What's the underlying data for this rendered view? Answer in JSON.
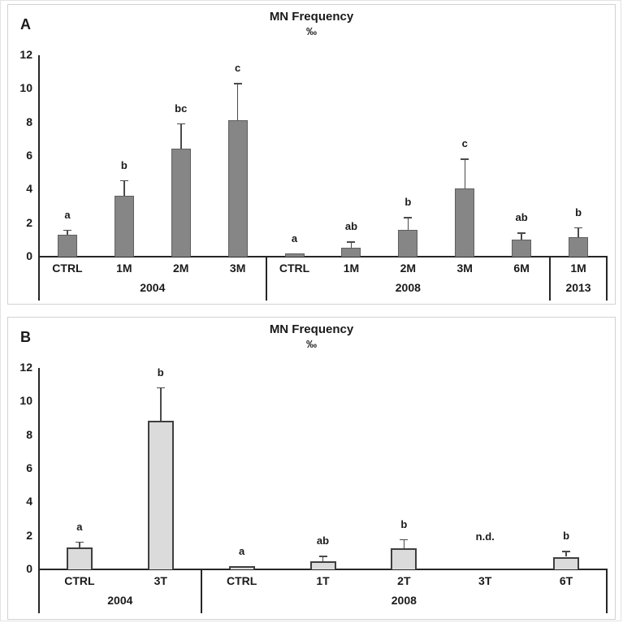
{
  "chart_data": [
    {
      "type": "bar",
      "panel": "A",
      "title": "MN Frequency",
      "subtitle": "‰",
      "ylabel": "",
      "xlabel": "",
      "ylim": [
        0,
        12
      ],
      "yticks": [
        0,
        2,
        4,
        6,
        8,
        10,
        12
      ],
      "grid": false,
      "legend": "none",
      "bar_fill": "#868686",
      "bar_border": "#5f5f5f",
      "bar_border_px": 1,
      "groups": [
        {
          "label": "2004",
          "bars": [
            {
              "category": "CTRL",
              "value": 1.3,
              "error": 0.3,
              "sig": "a"
            },
            {
              "category": "1M",
              "value": 3.65,
              "error": 0.9,
              "sig": "b"
            },
            {
              "category": "2M",
              "value": 6.45,
              "error": 1.5,
              "sig": "bc"
            },
            {
              "category": "3M",
              "value": 8.15,
              "error": 2.2,
              "sig": "c"
            }
          ]
        },
        {
          "label": "2008",
          "bars": [
            {
              "category": "CTRL",
              "value": 0.2,
              "error": 0,
              "sig": "a"
            },
            {
              "category": "1M",
              "value": 0.55,
              "error": 0.35,
              "sig": "ab"
            },
            {
              "category": "2M",
              "value": 1.6,
              "error": 0.75,
              "sig": "b"
            },
            {
              "category": "3M",
              "value": 4.05,
              "error": 1.8,
              "sig": "c"
            },
            {
              "category": "6M",
              "value": 1.0,
              "error": 0.45,
              "sig": "ab"
            }
          ]
        },
        {
          "label": "2013",
          "bars": [
            {
              "category": "1M",
              "value": 1.15,
              "error": 0.6,
              "sig": "b"
            }
          ]
        }
      ]
    },
    {
      "type": "bar",
      "panel": "B",
      "title": "MN Frequency",
      "subtitle": "‰",
      "ylabel": "",
      "xlabel": "",
      "ylim": [
        0,
        12
      ],
      "yticks": [
        0,
        2,
        4,
        6,
        8,
        10,
        12
      ],
      "grid": false,
      "legend": "none",
      "bar_fill": "#dbdbdb",
      "bar_border": "#3f3f3f",
      "bar_border_px": 2,
      "groups": [
        {
          "label": "2004",
          "bars": [
            {
              "category": "CTRL",
              "value": 1.3,
              "error": 0.35,
              "sig": "a"
            },
            {
              "category": "3T",
              "value": 8.85,
              "error": 2.0,
              "sig": "b"
            }
          ]
        },
        {
          "label": "2008",
          "bars": [
            {
              "category": "CTRL",
              "value": 0.2,
              "error": 0,
              "sig": "a"
            },
            {
              "category": "1T",
              "value": 0.5,
              "error": 0.3,
              "sig": "ab"
            },
            {
              "category": "2T",
              "value": 1.25,
              "error": 0.55,
              "sig": "b"
            },
            {
              "category": "3T",
              "value": null,
              "error": null,
              "sig": "n.d."
            },
            {
              "category": "6T",
              "value": 0.75,
              "error": 0.35,
              "sig": "b"
            }
          ]
        }
      ]
    }
  ]
}
